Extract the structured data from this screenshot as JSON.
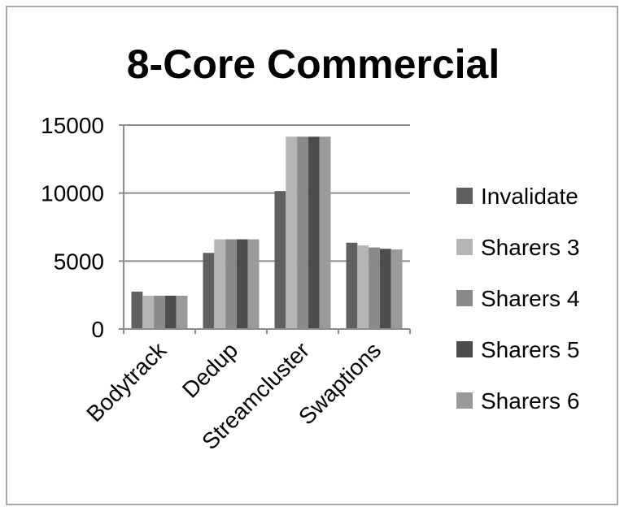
{
  "chart_data": {
    "type": "bar",
    "title": "8-Core Commercial",
    "xlabel": "",
    "ylabel": "",
    "categories": [
      "Bodytrack",
      "Dedup",
      "Streamcluster",
      "Swaptions"
    ],
    "series": [
      {
        "name": "Invalidate",
        "values": [
          2750,
          5600,
          10150,
          6350
        ],
        "color": "#5f5f5f"
      },
      {
        "name": "Sharers 3",
        "values": [
          2450,
          6600,
          14150,
          6150
        ],
        "color": "#b5b5b5"
      },
      {
        "name": "Sharers 4",
        "values": [
          2450,
          6600,
          14150,
          6000
        ],
        "color": "#8a8a8a"
      },
      {
        "name": "Sharers 5",
        "values": [
          2450,
          6600,
          14150,
          5900
        ],
        "color": "#4d4d4d"
      },
      {
        "name": "Sharers 6",
        "values": [
          2450,
          6600,
          14150,
          5850
        ],
        "color": "#9a9a9a"
      }
    ],
    "yticks": [
      0,
      5000,
      10000,
      15000
    ],
    "ylim": [
      0,
      15000
    ],
    "grid": true,
    "legend_position": "right"
  }
}
